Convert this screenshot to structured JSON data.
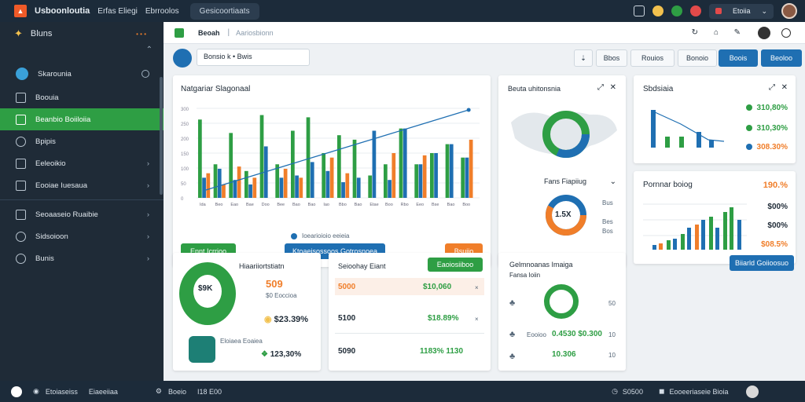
{
  "topbar": {
    "logo": "▲",
    "app_title": "Usboonloutia",
    "menu": "Erfas Eliegi",
    "menu2": "Ebrroolos",
    "search": "Gesicoortiaats",
    "user_label": "Etoiia"
  },
  "sidebar": {
    "header": "Bluns",
    "header_dots": "• • •",
    "section": "Skarounia",
    "items": [
      {
        "label": "Boouia",
        "chev": ""
      },
      {
        "label": "Beanbio Boiiloiia",
        "chev": ""
      },
      {
        "label": "Bpipis",
        "chev": ""
      },
      {
        "label": "Eeleoikio",
        "chev": "›"
      },
      {
        "label": "Eooiae Iuesaua",
        "chev": "›"
      },
      {
        "label": "Seoaaseio Ruaibie",
        "chev": "›"
      },
      {
        "label": "Sidsoioon",
        "chev": "›"
      },
      {
        "label": "Bunis",
        "chev": "›"
      }
    ]
  },
  "subbar": {
    "title": "Beoah",
    "breadcrumb": "Aariosbionn"
  },
  "toolbar": {
    "search_value": "Bonsio k  •  Bwis",
    "buttons": [
      "Bbos",
      "Rouios",
      "Bonoio",
      "Boois",
      "Beoloo"
    ]
  },
  "main_chart": {
    "title": "Natgariar Slagonaal",
    "legend": "Ioearioioio eeieia",
    "btn_left": "Ennt Icrrioo",
    "btn_mid": "Ktoaeisossoos Gotrosnoea",
    "btn_right": "Bsuiio"
  },
  "chart_data": {
    "type": "bar",
    "categories": [
      "Ida",
      "Beo",
      "Eao",
      "Bae",
      "Doo",
      "Bee",
      "Bao",
      "Bao",
      "Iao",
      "Bbo",
      "Bao",
      "Etae",
      "Boo",
      "Rbo",
      "Eeo",
      "Bse",
      "Bao",
      "Boo"
    ],
    "series": [
      {
        "color": "#2e9e44",
        "values": [
          350,
          150,
          290,
          120,
          370,
          150,
          300,
          360,
          200,
          280,
          260,
          100,
          150,
          310,
          150,
          200,
          240,
          180
        ]
      },
      {
        "color": "#1f6fb2",
        "values": [
          90,
          130,
          80,
          60,
          230,
          90,
          100,
          160,
          120,
          70,
          90,
          300,
          80,
          310,
          150,
          200,
          240,
          180
        ]
      },
      {
        "color": "#f07e2a",
        "values": [
          110,
          60,
          140,
          90,
          0,
          130,
          90,
          0,
          180,
          110,
          0,
          0,
          200,
          0,
          190,
          0,
          0,
          260
        ]
      }
    ],
    "ylabel": "",
    "ticks_y": [
      "300",
      "250",
      "200",
      "150",
      "100",
      "50",
      "0"
    ]
  },
  "map_card": {
    "title": "Beuta uhitonsnia",
    "label": "Fans Fiapiiug",
    "donut_value": "1.5X",
    "legend": [
      "Bus",
      "Bes",
      "Bos"
    ]
  },
  "stats_card": {
    "title": "Sbdsiaia",
    "values": [
      "310,80%",
      "310,30%",
      "308.30%"
    ]
  },
  "percent_card": {
    "title": "Pornnar boiog",
    "values": [
      "190.%",
      "$00%",
      "$00%",
      "$08.5%"
    ]
  },
  "right_button": "Biiarld Goiioosuo",
  "gauge_card": {
    "title": "Hiaariiortstiatn",
    "center": "$9K",
    "big": "509",
    "small": "$0 Eoccioa",
    "value": "$23.39%",
    "app_label": "Eloiaea Eoaiea",
    "value2": "123,30%"
  },
  "table_card": {
    "title": "Seioohay Eiant",
    "button": "Eaoiosiiboo",
    "rows": [
      {
        "c1": "5000",
        "c2": "$10,060",
        "c3": "×"
      },
      {
        "c1": "5100",
        "c2": "$18.89%",
        "c3": "×"
      },
      {
        "c1": "5090",
        "c2": "1183% 1130",
        "c3": ""
      }
    ]
  },
  "activity_card": {
    "title": "Gelmnoanas Imaiga",
    "subtitle": "Fansa Ioiin",
    "rows": [
      {
        "label": "",
        "value": "",
        "num": "50"
      },
      {
        "label": "Eooioo",
        "value": "0.4530 $0.300",
        "num": "10"
      },
      {
        "label": "",
        "value": "10.306",
        "num": "10"
      }
    ]
  },
  "footer": {
    "left": "Etoiaseiss",
    "left2": "Eiaeeiiaa",
    "mid": "Boeio",
    "mid2": "I18  E00",
    "right": "S0500",
    "right2": "Eooeeriaseie Bioia"
  }
}
